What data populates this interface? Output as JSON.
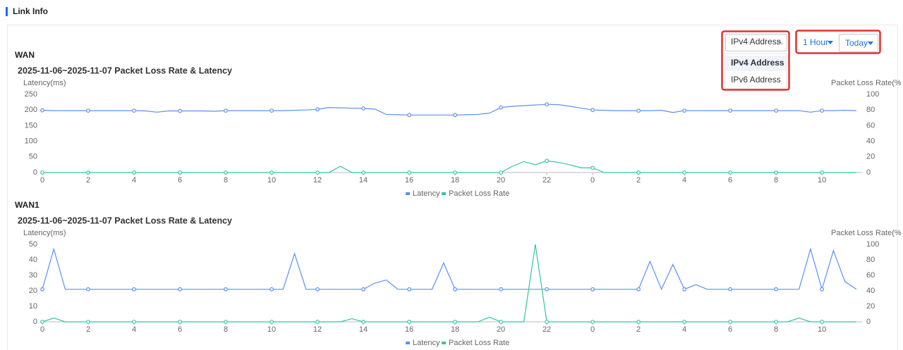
{
  "header": {
    "title": "Link Info"
  },
  "controls": {
    "address_select": "IPv4 Address",
    "address_options": [
      "IPv4 Address",
      "IPv6 Address"
    ],
    "interval_select": "1 Hour",
    "range_select": "Today"
  },
  "chart_data": [
    {
      "type": "line",
      "section": "WAN",
      "title": "2025-11-06~2025-11-07 Packet Loss Rate & Latency",
      "y_label": "Latency(ms)",
      "y2_label": "Packet Loss Rate(%",
      "x": [
        0,
        0.5,
        1,
        1.5,
        2,
        2.5,
        3,
        3.5,
        4,
        4.5,
        5,
        5.5,
        6,
        6.5,
        7,
        7.5,
        8,
        8.5,
        9,
        9.5,
        10,
        10.5,
        11,
        11.5,
        12,
        12.5,
        13,
        13.5,
        14,
        14.5,
        15,
        15.5,
        16,
        16.5,
        17,
        17.5,
        18,
        18.5,
        19,
        19.5,
        20,
        20.5,
        21,
        21.5,
        22,
        22.5,
        23,
        23.5,
        24,
        24.5,
        25,
        25.5,
        26,
        26.5,
        27,
        27.5,
        28,
        28.5,
        29,
        29.5,
        30,
        30.5,
        31,
        31.5,
        32,
        32.5,
        33,
        33.5,
        34,
        34.5,
        35,
        35.5
      ],
      "xlim": [
        0,
        35.75
      ],
      "xticks": [
        0,
        2,
        4,
        6,
        8,
        10,
        12,
        14,
        16,
        18,
        20,
        22,
        {
          "value": 24,
          "label": "0"
        },
        {
          "value": 26,
          "label": "2"
        },
        {
          "value": 28,
          "label": "4"
        },
        {
          "value": 30,
          "label": "6"
        },
        {
          "value": 32,
          "label": "8"
        },
        {
          "value": 34,
          "label": "10"
        }
      ],
      "ylim": [
        0,
        250
      ],
      "yticks": [
        0,
        50,
        100,
        150,
        200,
        250
      ],
      "y2lim": [
        0,
        100
      ],
      "y2ticks": [
        0,
        20,
        40,
        60,
        80,
        100
      ],
      "grid": false,
      "series": [
        {
          "name": "Latency",
          "color": "#5b8ff9",
          "values": [
            199,
            198,
            198,
            198,
            198,
            198,
            198,
            198,
            198,
            197,
            193,
            197,
            197,
            197,
            197,
            196,
            198,
            198,
            198,
            198,
            198,
            198,
            199,
            200,
            202,
            208,
            207,
            206,
            205,
            203,
            186,
            185,
            184,
            184,
            184,
            184,
            184,
            185,
            186,
            190,
            208,
            212,
            214,
            216,
            218,
            217,
            212,
            206,
            200,
            199,
            198,
            198,
            198,
            198,
            199,
            192,
            198,
            198,
            198,
            198,
            198,
            198,
            198,
            198,
            198,
            198,
            198,
            193,
            198,
            198,
            199,
            198
          ]
        },
        {
          "name": "Packet Loss Rate",
          "color": "#2ec7a0",
          "axis": "y2",
          "values": [
            0,
            0,
            0,
            0,
            0,
            0,
            0,
            0,
            0,
            0,
            0,
            0,
            0,
            0,
            0,
            0,
            0,
            0,
            0,
            0,
            0,
            0,
            0,
            0,
            0,
            0,
            8,
            0,
            0,
            0,
            0,
            0,
            0,
            0,
            0,
            0,
            0,
            0,
            0,
            0,
            0,
            8,
            14,
            10,
            15,
            13,
            10,
            6,
            6,
            0,
            0,
            0,
            0,
            0,
            0,
            0,
            0,
            0,
            0,
            0,
            0,
            0,
            0,
            0,
            0,
            0,
            0,
            0,
            0,
            0,
            0,
            0
          ]
        }
      ]
    },
    {
      "type": "line",
      "section": "WAN1",
      "title": "2025-11-06~2025-11-07 Packet Loss Rate & Latency",
      "y_label": "Latency(ms)",
      "y2_label": "Packet Loss Rate(%",
      "x": [
        0,
        0.5,
        1,
        1.5,
        2,
        2.5,
        3,
        3.5,
        4,
        4.5,
        5,
        5.5,
        6,
        6.5,
        7,
        7.5,
        8,
        8.5,
        9,
        9.5,
        10,
        10.5,
        11,
        11.5,
        12,
        12.5,
        13,
        13.5,
        14,
        14.5,
        15,
        15.5,
        16,
        16.5,
        17,
        17.5,
        18,
        18.5,
        19,
        19.5,
        20,
        20.5,
        21,
        21.5,
        22,
        22.5,
        23,
        23.5,
        24,
        24.5,
        25,
        25.5,
        26,
        26.5,
        27,
        27.5,
        28,
        28.5,
        29,
        29.5,
        30,
        30.5,
        31,
        31.5,
        32,
        32.5,
        33,
        33.5,
        34,
        34.5,
        35,
        35.5
      ],
      "xlim": [
        0,
        35.75
      ],
      "xticks": [
        0,
        2,
        4,
        6,
        8,
        10,
        12,
        14,
        16,
        18,
        20,
        22,
        {
          "value": 24,
          "label": "0"
        },
        {
          "value": 26,
          "label": "2"
        },
        {
          "value": 28,
          "label": "4"
        },
        {
          "value": 30,
          "label": "6"
        },
        {
          "value": 32,
          "label": "8"
        },
        {
          "value": 34,
          "label": "10"
        }
      ],
      "ylim": [
        0,
        50
      ],
      "yticks": [
        0,
        10,
        20,
        30,
        40,
        50
      ],
      "y2lim": [
        0,
        100
      ],
      "y2ticks": [
        0,
        20,
        40,
        60,
        80,
        100
      ],
      "grid": false,
      "series": [
        {
          "name": "Latency",
          "color": "#5b8ff9",
          "values": [
            21,
            47,
            21,
            21,
            21,
            21,
            21,
            21,
            21,
            21,
            21,
            21,
            21,
            21,
            21,
            21,
            21,
            21,
            21,
            21,
            21,
            21,
            44,
            21,
            21,
            21,
            21,
            21,
            21,
            25,
            27,
            21,
            21,
            21,
            21,
            38,
            21,
            21,
            21,
            21,
            21,
            21,
            21,
            21,
            21,
            21,
            21,
            21,
            21,
            21,
            21,
            21,
            21,
            39,
            21,
            37,
            21,
            24,
            21,
            21,
            21,
            21,
            21,
            21,
            21,
            21,
            21,
            47,
            21,
            46,
            26,
            21
          ]
        },
        {
          "name": "Packet Loss Rate",
          "color": "#2ec7a0",
          "axis": "y2",
          "values": [
            0,
            5,
            0,
            0,
            0,
            0,
            0,
            0,
            0,
            0,
            0,
            0,
            0,
            0,
            0,
            0,
            0,
            0,
            0,
            0,
            0,
            0,
            0,
            0,
            0,
            0,
            0,
            4,
            0,
            0,
            0,
            0,
            0,
            0,
            0,
            0,
            0,
            0,
            0,
            6,
            0,
            0,
            0,
            100,
            0,
            0,
            0,
            0,
            0,
            0,
            0,
            0,
            0,
            0,
            0,
            0,
            0,
            0,
            0,
            0,
            0,
            0,
            0,
            0,
            0,
            0,
            5,
            0,
            0,
            0,
            0,
            0
          ]
        }
      ]
    }
  ]
}
